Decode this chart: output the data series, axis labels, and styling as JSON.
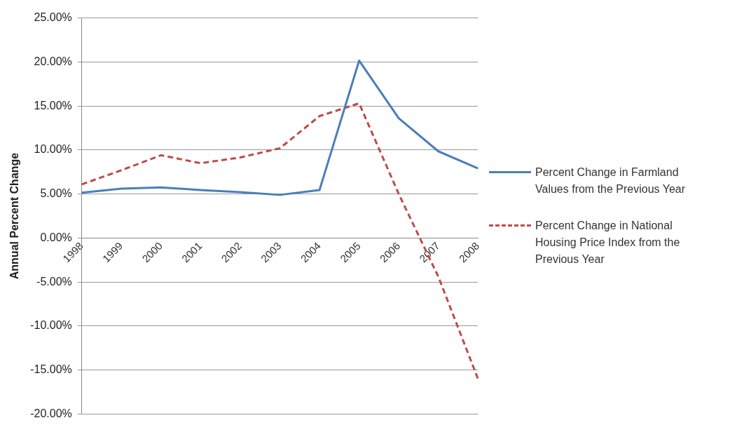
{
  "chart_data": {
    "type": "line",
    "ylabel": "Annual Percent Change",
    "categories": [
      "1998",
      "1999",
      "2000",
      "2001",
      "2002",
      "2003",
      "2004",
      "2005",
      "2006",
      "2007",
      "2008"
    ],
    "series": [
      {
        "name": "Percent Change in Farmland Values from the Previous Year",
        "color": "#4a7ebb",
        "line_style": "solid",
        "values": [
          5.15,
          5.6,
          5.75,
          5.45,
          5.2,
          4.9,
          5.45,
          20.15,
          13.6,
          9.85,
          7.9
        ]
      },
      {
        "name": "Percent Change in National Housing Price Index from the Previous Year",
        "color": "#be4b48",
        "line_style": "dashed",
        "values": [
          6.1,
          7.7,
          9.4,
          8.5,
          9.15,
          10.2,
          13.85,
          15.3,
          5.0,
          -4.4,
          -16.0
        ]
      }
    ],
    "ylim": [
      -20,
      25
    ],
    "yticks": [
      {
        "value": -20,
        "label": "-20.00%"
      },
      {
        "value": -15,
        "label": "-15.00%"
      },
      {
        "value": -10,
        "label": "-10.00%"
      },
      {
        "value": -5,
        "label": "-5.00%"
      },
      {
        "value": 0,
        "label": "0.00%"
      },
      {
        "value": 5,
        "label": "5.00%"
      },
      {
        "value": 10,
        "label": "10.00%"
      },
      {
        "value": 15,
        "label": "15.00%"
      },
      {
        "value": 20,
        "label": "20.00%"
      },
      {
        "value": 25,
        "label": "25.00%"
      }
    ],
    "grid": "y",
    "legend": "right",
    "marker": "none"
  }
}
